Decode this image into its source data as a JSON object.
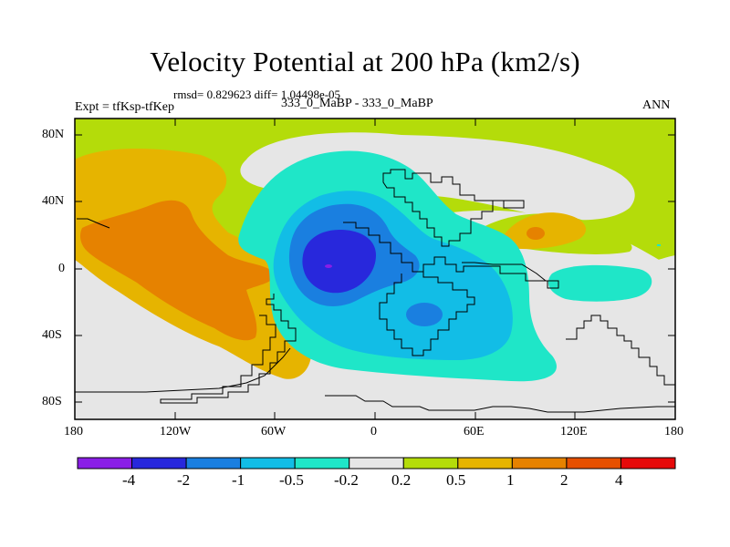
{
  "figure": {
    "title": "Velocity Potential at 200 hPa (km2/s)",
    "stats": "rmsd= 0.829623  diff= 1.04498e-05",
    "experiment": "Expt = tfKsp-tfKep",
    "case": "333_0_MaBP - 333_0_MaBP",
    "season": "ANN"
  },
  "axes": {
    "lat_ticks": [
      "80N",
      "40N",
      "0",
      "40S",
      "80S"
    ],
    "lon_ticks": [
      "180",
      "120W",
      "60W",
      "0",
      "60E",
      "120E",
      "180"
    ]
  },
  "colorbar": {
    "colors": [
      "#8a1ee6",
      "#2828dc",
      "#1a7fe0",
      "#12bde6",
      "#1fe6c8",
      "#e6e6e6",
      "#b4dc0a",
      "#e6b400",
      "#e68200",
      "#e65000",
      "#e60a0a"
    ],
    "labels": [
      "-4",
      "-2",
      "-1",
      "-0.5",
      "-0.2",
      "0.2",
      "0.5",
      "1",
      "2",
      "4"
    ]
  },
  "legend_colors": {
    "neutral": "#e6e6e6",
    "pos_weak": "#b4dc0a",
    "pos_mid": "#e6b400",
    "pos_strong": "#e68200",
    "neg_weak": "#1fe6c8",
    "neg_mid": "#12bde6",
    "neg_strong": "#1a7fe0",
    "neg_vstrong": "#2828dc",
    "neg_extreme": "#8a1ee6"
  }
}
